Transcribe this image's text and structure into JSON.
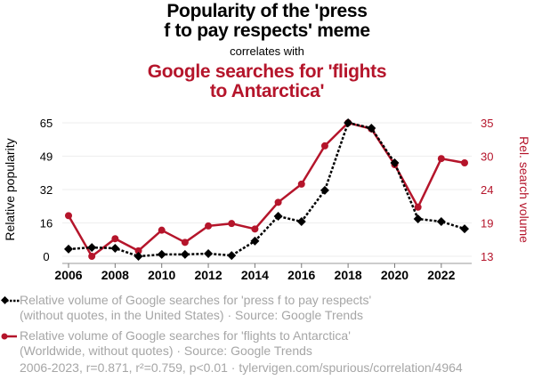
{
  "header": {
    "title": "Popularity of the 'press f to pay respects' meme",
    "title_line1": "Popularity of the 'press",
    "title_line2": "f to pay respects' meme",
    "subtitle": "correlates with",
    "title2_line1": "Google searches for 'flights",
    "title2_line2": "to Antarctica'"
  },
  "legend": {
    "items": [
      {
        "line1": "Relative volume of Google searches for 'press f to pay respects'",
        "line2": "(without quotes, in the United States) · Source: Google Trends",
        "color": "#000000",
        "marker": "diamond",
        "style": "dotted"
      },
      {
        "line1": "Relative volume of Google searches for 'flights to Antarctica'",
        "line2": "(Worldwide, without quotes) · Source: Google Trends",
        "color": "#b5152b",
        "marker": "circle",
        "style": "solid"
      }
    ]
  },
  "footer": {
    "text": "2006-2023, r=0.871, r²=0.759, p<0.01 · tylervigen.com/spurious/correlation/4964"
  },
  "colors": {
    "series1": "#000000",
    "series2": "#b5152b",
    "grid": "#eeeeee",
    "legend_text": "#a6a6a6"
  },
  "chart_data": {
    "type": "line",
    "title": "Popularity of the 'press f to pay respects' meme correlates with Google searches for 'flights to Antarctica'",
    "x": [
      2006,
      2007,
      2008,
      2009,
      2010,
      2011,
      2012,
      2013,
      2014,
      2015,
      2016,
      2017,
      2018,
      2019,
      2020,
      2021,
      2022,
      2023
    ],
    "xticks": [
      "2006",
      "2008",
      "2010",
      "2012",
      "2014",
      "2016",
      "2018",
      "2020",
      "2022"
    ],
    "xlim": [
      2006,
      2023
    ],
    "ylabel": "Relative popularity",
    "ylim": [
      0,
      65
    ],
    "yticks": [
      "0",
      "16",
      "32",
      "49",
      "65"
    ],
    "y2label": "Rel. search volume",
    "y2lim": [
      13,
      35
    ],
    "y2ticks": [
      "13",
      "19",
      "24",
      "30",
      "35"
    ],
    "grid": true,
    "legend_position": "bottom-left",
    "series": [
      {
        "name": "Relative volume of Google searches for 'press f to pay respects'",
        "axis": "left",
        "values": [
          3.5,
          4.3,
          3.9,
          0,
          0.9,
          0.9,
          1.3,
          0.4,
          7.4,
          19.5,
          16.9,
          32.1,
          65,
          62.4,
          45.5,
          18.2,
          16.9,
          13.4
        ]
      },
      {
        "name": "Relative volume of Google searches for 'flights to Antarctica'",
        "axis": "right",
        "values": [
          19.7,
          13,
          15.9,
          13.9,
          17.3,
          15.3,
          18,
          18.4,
          17.5,
          21.9,
          24.9,
          31.2,
          35,
          34,
          28.1,
          21.1,
          29.1,
          28.4
        ]
      }
    ]
  }
}
